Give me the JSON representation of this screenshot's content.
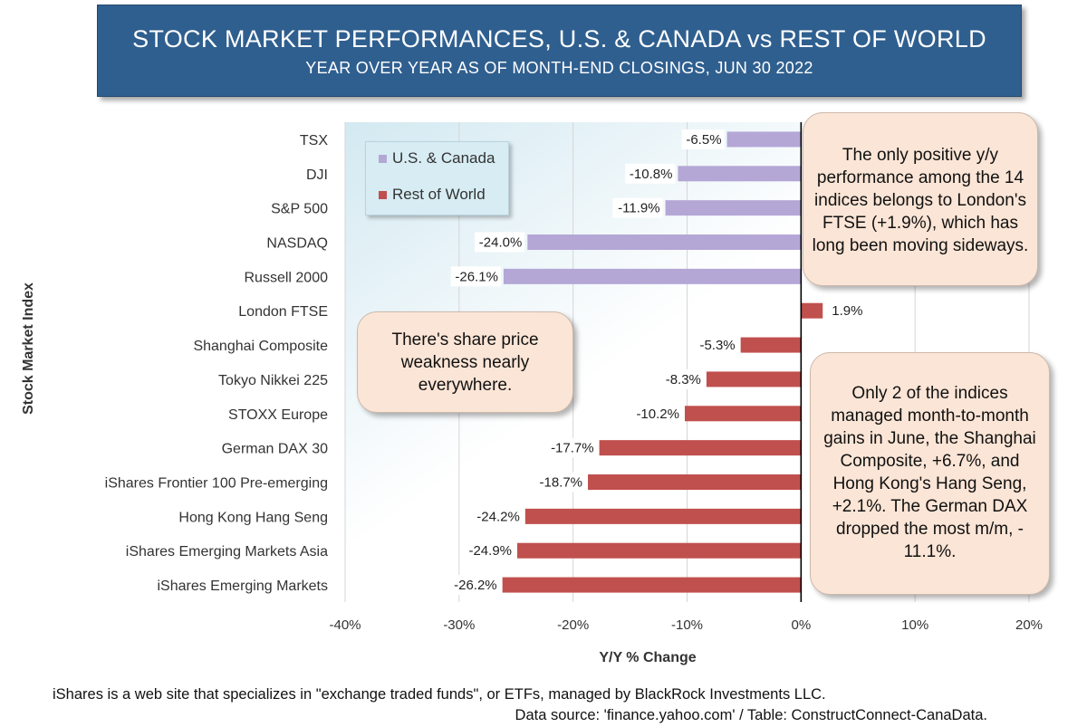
{
  "title": "STOCK MARKET PERFORMANCES, U.S. & CANADA vs REST OF WORLD",
  "subtitle": "YEAR OVER YEAR AS OF MONTH-END CLOSINGS, JUN 30 2022",
  "colors": {
    "us_canada": "#b4a7d6",
    "rest_of_world": "#c0504d",
    "title_bg": "#2f5f8f",
    "callout_bg": "#fbe5d6"
  },
  "chart_data": {
    "type": "bar",
    "orientation": "horizontal",
    "xlabel": "Y/Y % Change",
    "ylabel": "Stock Market Index",
    "xlim": [
      -40,
      20
    ],
    "x_ticks": [
      "-40%",
      "-30%",
      "-20%",
      "-10%",
      "0%",
      "10%",
      "20%"
    ],
    "x_tick_values": [
      -40,
      -30,
      -20,
      -10,
      0,
      10,
      20
    ],
    "grid": true,
    "legend_position": "top-left",
    "series": [
      {
        "name": "U.S. & Canada",
        "color": "#b4a7d6"
      },
      {
        "name": "Rest of World",
        "color": "#c0504d"
      }
    ],
    "bars": [
      {
        "category": "TSX",
        "value": -6.5,
        "label": "-6.5%",
        "series": 0
      },
      {
        "category": "DJI",
        "value": -10.8,
        "label": "-10.8%",
        "series": 0
      },
      {
        "category": "S&P 500",
        "value": -11.9,
        "label": "-11.9%",
        "series": 0
      },
      {
        "category": "NASDAQ",
        "value": -24.0,
        "label": "-24.0%",
        "series": 0
      },
      {
        "category": "Russell  2000",
        "value": -26.1,
        "label": "-26.1%",
        "series": 0
      },
      {
        "category": "London FTSE",
        "value": 1.9,
        "label": "1.9%",
        "series": 1
      },
      {
        "category": "Shanghai Composite",
        "value": -5.3,
        "label": "-5.3%",
        "series": 1
      },
      {
        "category": "Tokyo Nikkei 225",
        "value": -8.3,
        "label": "-8.3%",
        "series": 1
      },
      {
        "category": "STOXX Europe",
        "value": -10.2,
        "label": "-10.2%",
        "series": 1
      },
      {
        "category": "German DAX 30",
        "value": -17.7,
        "label": "-17.7%",
        "series": 1
      },
      {
        "category": "iShares Frontier 100 Pre-emerging",
        "value": -18.7,
        "label": "-18.7%",
        "series": 1
      },
      {
        "category": "Hong Kong Hang Seng",
        "value": -24.2,
        "label": "-24.2%",
        "series": 1
      },
      {
        "category": "iShares Emerging Markets Asia",
        "value": -24.9,
        "label": "-24.9%",
        "series": 1
      },
      {
        "category": "iShares Emerging Markets",
        "value": -26.2,
        "label": "-26.2%",
        "series": 1
      }
    ]
  },
  "callouts": {
    "positive": [
      "The only positive y/y",
      "performance among the 14",
      "indices belongs to London's",
      "FTSE (+1.9%), which has",
      "long been moving sideways."
    ],
    "weakness": [
      "There's share price",
      "weakness nearly",
      "everywhere."
    ],
    "monthly": [
      "Only 2 of the indices",
      "managed month-to-month",
      "gains in June, the Shanghai",
      "Composite, +6.7%, and",
      "Hong Kong's Hang Seng,",
      "+2.1%. The German DAX",
      "dropped the most m/m, -",
      "11.1%."
    ]
  },
  "footnote": "iShares is a web site that specializes in \"exchange traded funds\", or ETFs, managed by BlackRock Investments LLC.",
  "source": "Data source: 'finance.yahoo.com' / Table: ConstructConnect-CanaData."
}
